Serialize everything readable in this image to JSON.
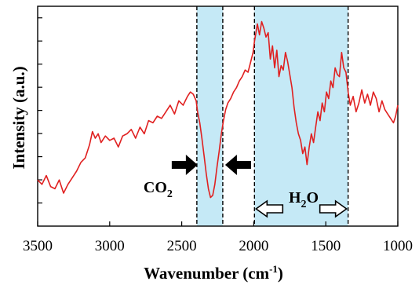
{
  "chart_data": {
    "type": "line",
    "xlabel": "Wavenumber (cm",
    "xlabel_sup": "-1",
    "xlabel_close": ")",
    "ylabel": "Intensity (a.u.)",
    "x_ticks": [
      3500,
      3000,
      2500,
      2000,
      1500,
      1000
    ],
    "xlim": [
      3500,
      1000
    ],
    "ylim": [
      0,
      1
    ],
    "y_ticks_labeled": false,
    "grid": false,
    "line_color": "#e02020",
    "band_color": "#c5e9f6",
    "bands": [
      {
        "from": 2395,
        "to": 2215,
        "label_main": "CO",
        "label_sub": "2",
        "arrows": "inward"
      },
      {
        "from": 1995,
        "to": 1345,
        "label_main": "H",
        "label_sub": "2",
        "label_tail": "O",
        "arrows": "outward"
      }
    ],
    "series": [
      {
        "x": [
          3500,
          3470,
          3440,
          3410,
          3380,
          3350,
          3320,
          3290,
          3260,
          3230,
          3200,
          3170,
          3140,
          3120,
          3100,
          3080,
          3060,
          3030,
          3000,
          2970,
          2940,
          2910,
          2880,
          2850,
          2820,
          2790,
          2760,
          2730,
          2700,
          2670,
          2640,
          2610,
          2580,
          2550,
          2520,
          2490,
          2460,
          2440,
          2420,
          2400,
          2390,
          2375,
          2360,
          2345,
          2330,
          2315,
          2300,
          2285,
          2270,
          2255,
          2240,
          2225,
          2210,
          2195,
          2180,
          2160,
          2140,
          2120,
          2100,
          2080,
          2060,
          2040,
          2020,
          2005,
          1995,
          1985,
          1975,
          1960,
          1945,
          1930,
          1915,
          1900,
          1885,
          1870,
          1855,
          1840,
          1825,
          1810,
          1795,
          1780,
          1765,
          1750,
          1735,
          1720,
          1705,
          1690,
          1675,
          1660,
          1645,
          1630,
          1615,
          1600,
          1585,
          1570,
          1555,
          1540,
          1525,
          1510,
          1495,
          1480,
          1465,
          1450,
          1435,
          1420,
          1405,
          1390,
          1375,
          1360,
          1345,
          1330,
          1310,
          1290,
          1270,
          1250,
          1230,
          1210,
          1190,
          1170,
          1150,
          1130,
          1110,
          1090,
          1070,
          1050,
          1030,
          1015,
          1000
        ],
        "y": [
          0.21,
          0.19,
          0.23,
          0.18,
          0.17,
          0.21,
          0.15,
          0.19,
          0.22,
          0.25,
          0.29,
          0.31,
          0.37,
          0.43,
          0.4,
          0.42,
          0.38,
          0.41,
          0.39,
          0.4,
          0.36,
          0.41,
          0.42,
          0.44,
          0.4,
          0.45,
          0.42,
          0.48,
          0.47,
          0.5,
          0.49,
          0.52,
          0.55,
          0.51,
          0.57,
          0.55,
          0.59,
          0.61,
          0.6,
          0.57,
          0.52,
          0.47,
          0.4,
          0.32,
          0.24,
          0.17,
          0.13,
          0.14,
          0.19,
          0.27,
          0.34,
          0.42,
          0.48,
          0.53,
          0.56,
          0.58,
          0.61,
          0.63,
          0.66,
          0.68,
          0.71,
          0.7,
          0.75,
          0.79,
          0.84,
          0.88,
          0.92,
          0.87,
          0.93,
          0.9,
          0.86,
          0.88,
          0.76,
          0.82,
          0.72,
          0.8,
          0.68,
          0.73,
          0.71,
          0.79,
          0.75,
          0.69,
          0.63,
          0.54,
          0.47,
          0.42,
          0.39,
          0.33,
          0.36,
          0.28,
          0.36,
          0.42,
          0.38,
          0.45,
          0.52,
          0.48,
          0.56,
          0.52,
          0.61,
          0.58,
          0.66,
          0.63,
          0.72,
          0.69,
          0.68,
          0.79,
          0.72,
          0.7,
          0.61,
          0.55,
          0.59,
          0.52,
          0.56,
          0.62,
          0.56,
          0.6,
          0.55,
          0.61,
          0.58,
          0.52,
          0.57,
          0.53,
          0.51,
          0.49,
          0.47,
          0.5,
          0.55
        ]
      }
    ]
  }
}
